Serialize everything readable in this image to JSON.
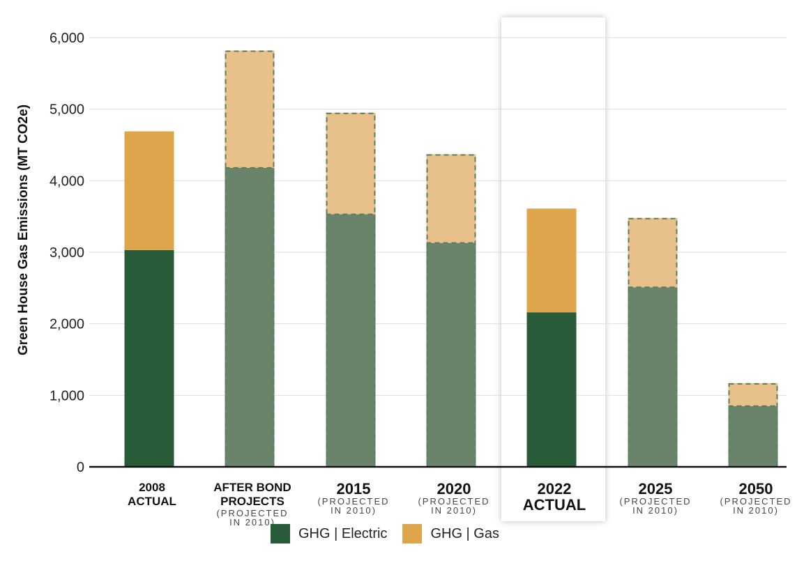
{
  "chart_data": {
    "type": "bar",
    "stacked": true,
    "categories": [
      {
        "main": [
          "2008",
          "ACTUAL"
        ],
        "sub": []
      },
      {
        "main": [
          "AFTER BOND",
          "PROJECTS"
        ],
        "sub": [
          "(PROJECTED",
          "IN 2010)"
        ]
      },
      {
        "main": [
          "2015"
        ],
        "sub": [
          "(PROJECTED",
          "IN 2010)"
        ]
      },
      {
        "main": [
          "2020"
        ],
        "sub": [
          "(PROJECTED",
          "IN 2010)"
        ]
      },
      {
        "main": [
          "2022",
          "ACTUAL"
        ],
        "sub": []
      },
      {
        "main": [
          "2025"
        ],
        "sub": [
          "(PROJECTED",
          "IN 2010)"
        ]
      },
      {
        "main": [
          "2050"
        ],
        "sub": [
          "(PROJECTED",
          "IN 2010)"
        ]
      }
    ],
    "projected": [
      false,
      true,
      true,
      true,
      false,
      true,
      true
    ],
    "highlighted": [
      false,
      false,
      false,
      false,
      true,
      false,
      false
    ],
    "series": [
      {
        "name": "GHG | Electric",
        "values": [
          3030,
          4180,
          3530,
          3130,
          2160,
          2510,
          850
        ]
      },
      {
        "name": "GHG | Gas",
        "values": [
          1660,
          1640,
          1420,
          1240,
          1450,
          970,
          320
        ]
      }
    ],
    "ylabel": "Green House Gas Emissions (MT CO2e)",
    "ylim": [
      0,
      6000
    ],
    "yticks": [
      0,
      1000,
      2000,
      3000,
      4000,
      5000,
      6000
    ],
    "ytick_labels": [
      "0",
      "1,000",
      "2,000",
      "3,000",
      "4,000",
      "5,000",
      "6,000"
    ],
    "grid": true,
    "legend_position": "bottom",
    "colors": {
      "electric_actual": "#285b37",
      "electric_projected": "#6a846b",
      "gas_actual": "#dea54c",
      "gas_projected": "#e7c08a",
      "dash_stroke": "#587c5c",
      "grid": "#dedede",
      "axis": "#111111"
    }
  },
  "legend": [
    {
      "label": "GHG | Electric",
      "color": "#285b37"
    },
    {
      "label": "GHG | Gas",
      "color": "#dea54c"
    }
  ]
}
